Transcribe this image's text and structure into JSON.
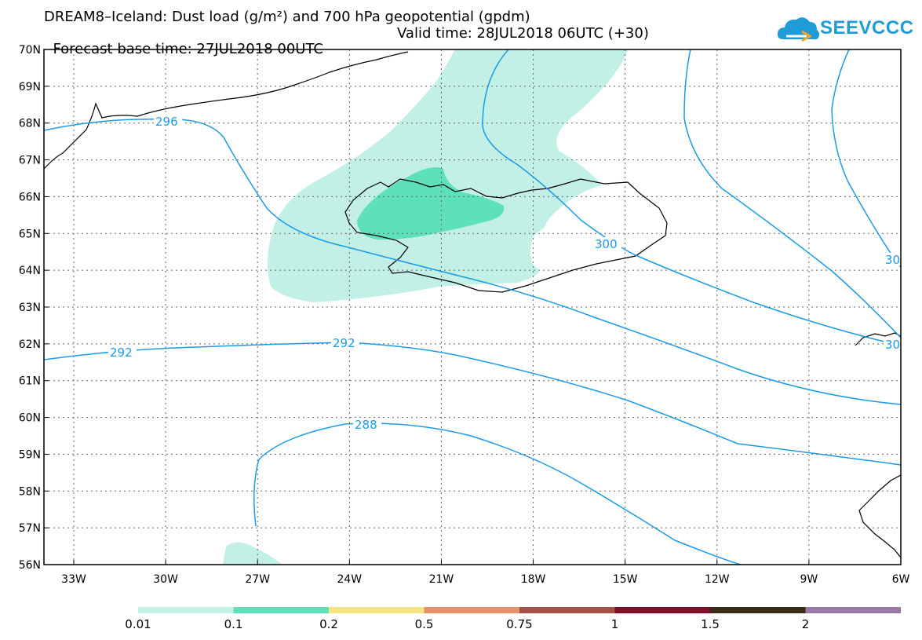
{
  "header": {
    "title_line1": "DREAM8–Iceland: Dust load (g/m²) and 700 hPa geopotential (gpdm)",
    "base_time": "Forecast base time: 27JUL2018 00UTC",
    "valid_time": "Valid time: 28JUL2018 06UTC (+30)"
  },
  "logo": {
    "text": "SEEVCCC",
    "icon": "cloud-logo-icon",
    "color": "#1f9bd8"
  },
  "map": {
    "lat_labels": [
      "70N",
      "69N",
      "68N",
      "67N",
      "66N",
      "65N",
      "64N",
      "63N",
      "62N",
      "61N",
      "60N",
      "59N",
      "58N",
      "57N",
      "56N"
    ],
    "lon_labels": [
      "33W",
      "30W",
      "27W",
      "24W",
      "21W",
      "18W",
      "15W",
      "12W",
      "9W",
      "6W"
    ],
    "contour_color": "#1a9be6",
    "contour_labels": [
      "296",
      "300",
      "30",
      "30",
      "292",
      "292",
      "288"
    ]
  },
  "legend": {
    "colors": [
      "#c2f0e6",
      "#5ee0b8",
      "#f5e680",
      "#e8906a",
      "#a85048",
      "#80102a",
      "#3a2a18",
      "#9a78a8"
    ],
    "labels": [
      "0.01",
      "0.1",
      "0.2",
      "0.5",
      "0.75",
      "1",
      "1.5",
      "2"
    ]
  }
}
